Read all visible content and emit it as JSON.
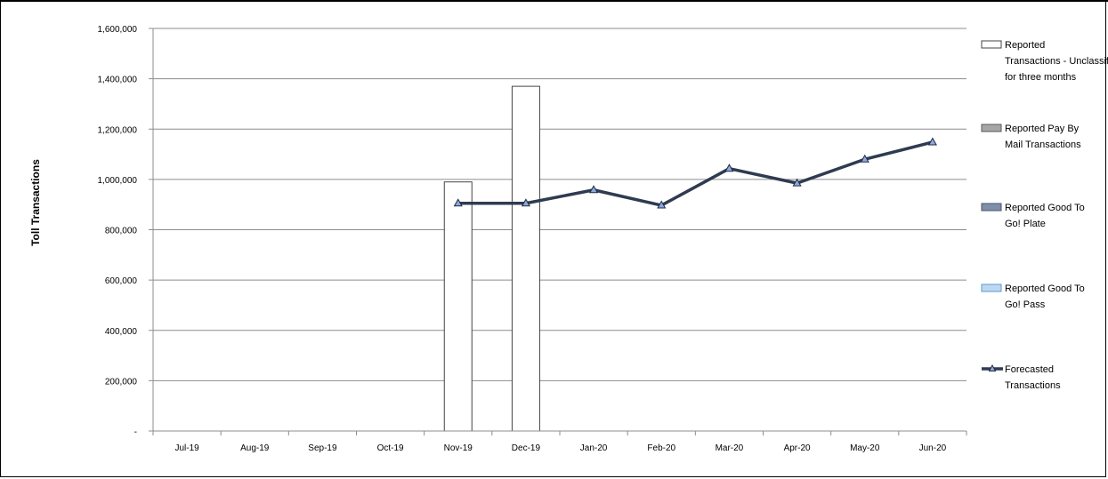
{
  "chart_data": {
    "type": "bar",
    "title": "",
    "xlabel": "",
    "ylabel": "Toll Transactions",
    "categories": [
      "Jul-19",
      "Aug-19",
      "Sep-19",
      "Oct-19",
      "Nov-19",
      "Dec-19",
      "Jan-20",
      "Feb-20",
      "Mar-20",
      "Apr-20",
      "May-20",
      "Jun-20"
    ],
    "ylim": [
      0,
      1600000
    ],
    "yticks": [
      0,
      200000,
      400000,
      600000,
      800000,
      1000000,
      1200000,
      1400000,
      1600000
    ],
    "ytick_labels": [
      "-",
      "200,000",
      "400,000",
      "600,000",
      "800,000",
      "1,000,000",
      "1,200,000",
      "1,400,000",
      "1,600,000"
    ],
    "grid": true,
    "legend_position": "right",
    "series": [
      {
        "name": "Reported Transactions - Unclassified for three months",
        "type": "bar",
        "color": "#ffffff",
        "stroke": "#444444",
        "values": [
          null,
          null,
          null,
          null,
          990000,
          1370000,
          null,
          null,
          null,
          null,
          null,
          null
        ]
      },
      {
        "name": "Reported Pay By Mail Transactions",
        "type": "bar",
        "color": "#a6a6a6",
        "stroke": "#595959",
        "values": [
          null,
          null,
          null,
          null,
          null,
          null,
          null,
          null,
          null,
          null,
          null,
          null
        ]
      },
      {
        "name": "Reported Good To Go! Plate",
        "type": "bar",
        "color": "#7f8fa9",
        "stroke": "#44546a",
        "values": [
          null,
          null,
          null,
          null,
          null,
          null,
          null,
          null,
          null,
          null,
          null,
          null
        ]
      },
      {
        "name": "Reported Good To Go! Pass",
        "type": "bar",
        "color": "#bdd7ee",
        "stroke": "#5b9bd5",
        "values": [
          null,
          null,
          null,
          null,
          null,
          null,
          null,
          null,
          null,
          null,
          null,
          null
        ]
      },
      {
        "name": "Forecasted Transactions",
        "type": "line",
        "color": "#2f3b50",
        "marker_fill": "#8ea9db",
        "values": [
          null,
          null,
          null,
          null,
          905000,
          905000,
          958000,
          897000,
          1043000,
          985000,
          1080000,
          1148000
        ]
      }
    ]
  }
}
